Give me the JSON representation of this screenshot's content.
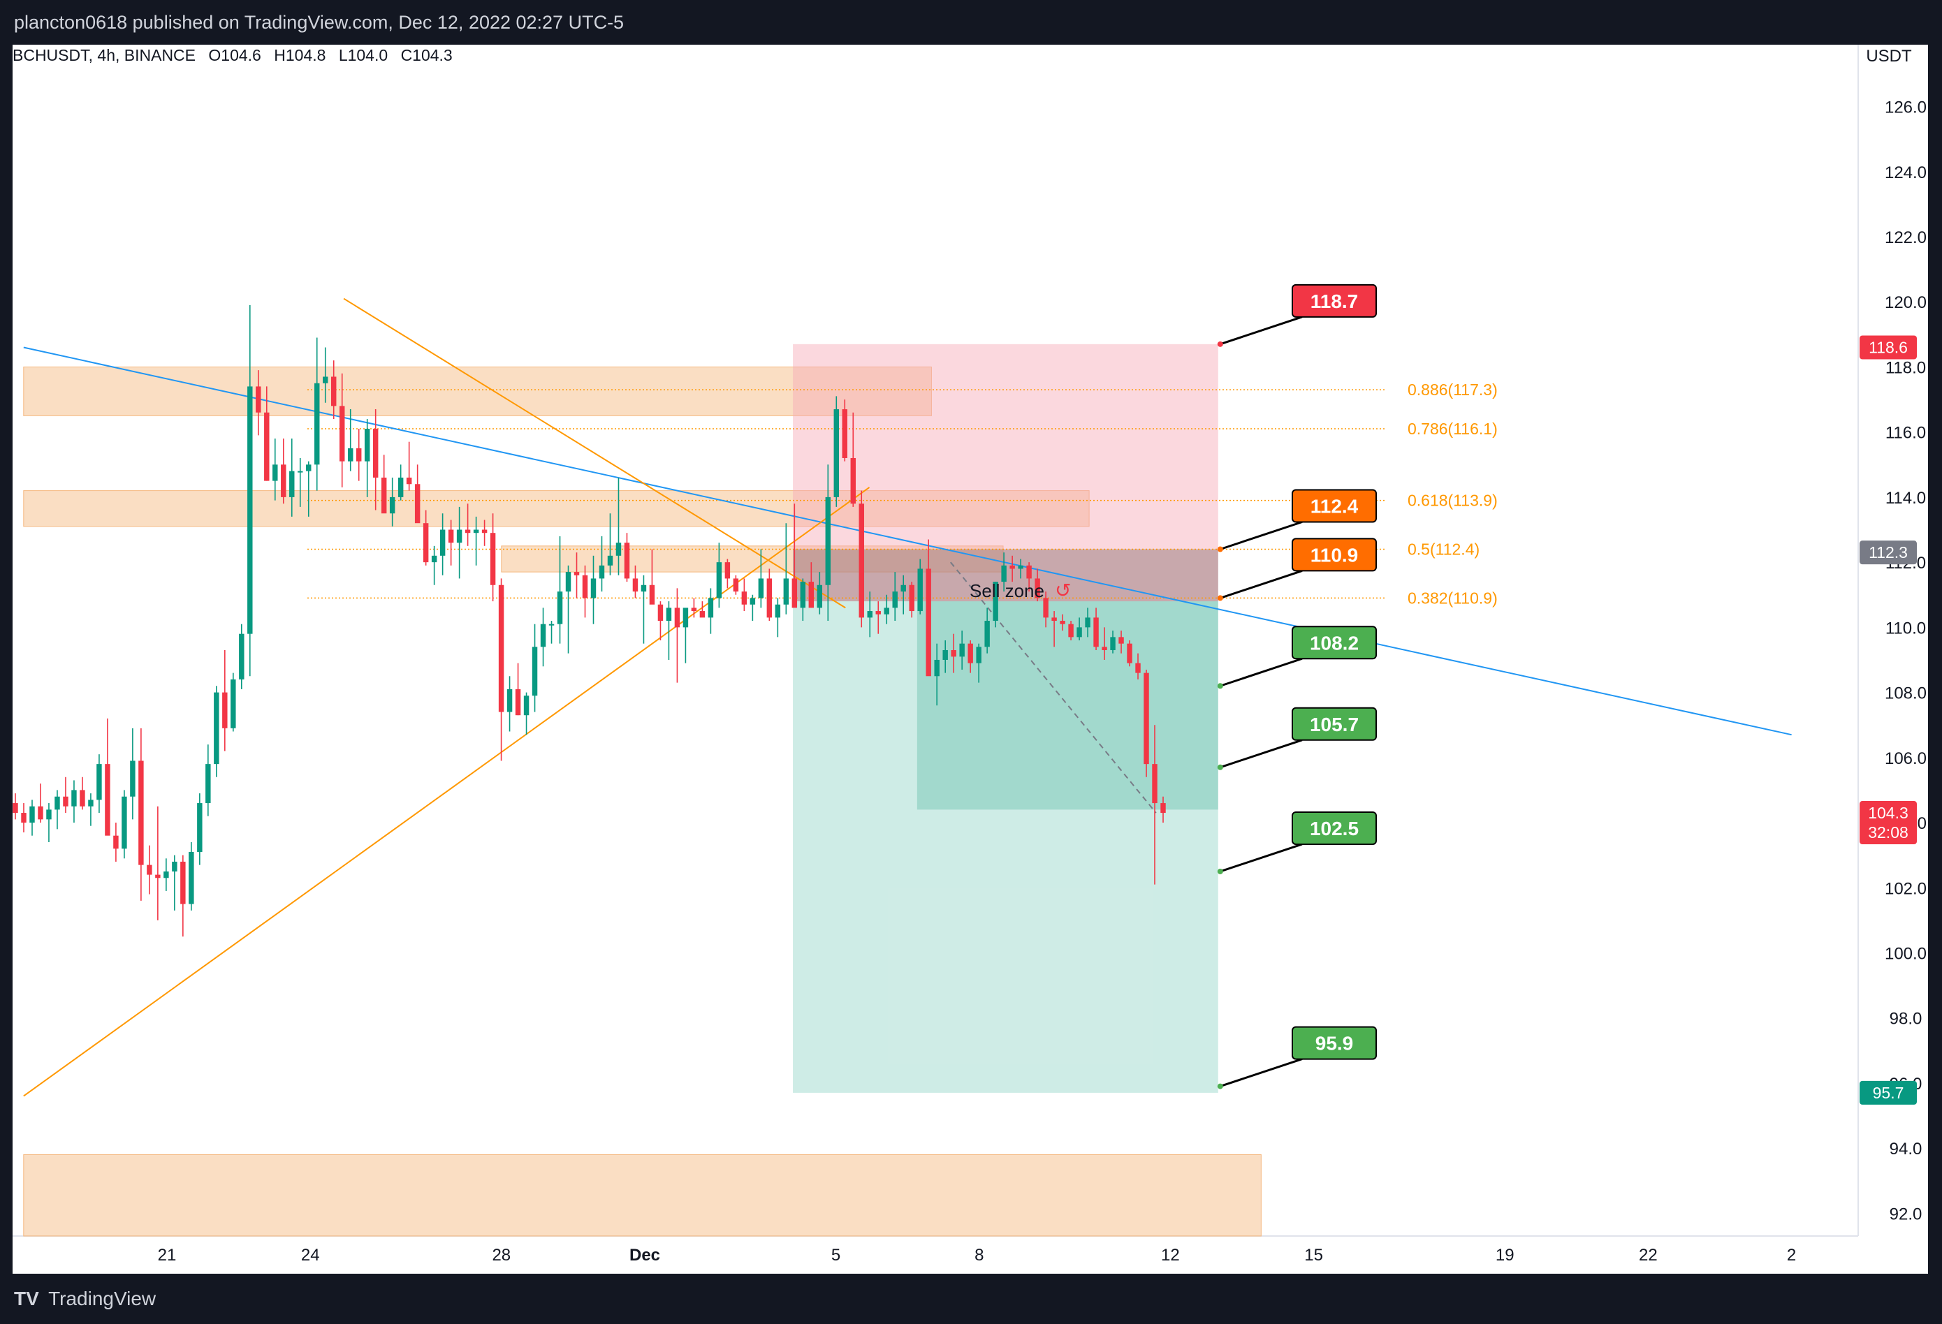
{
  "header": {
    "published_text": "plancton0618 published on TradingView.com, Dec 12, 2022 02:27 UTC-5"
  },
  "legend": {
    "symbol": "BCHUSDT, 4h, BINANCE",
    "open": "O104.6",
    "high": "H104.8",
    "low": "L104.0",
    "close": "C104.3"
  },
  "footer": {
    "brand": "TradingView"
  },
  "chart_data": {
    "type": "candlestick",
    "symbol": "BCHUSDT",
    "timeframe": "4h",
    "exchange": "BINANCE",
    "quote_currency": "USDT",
    "y_ticks": [
      "126.0",
      "124.0",
      "122.0",
      "120.0",
      "118.0",
      "116.0",
      "114.0",
      "112.0",
      "110.0",
      "108.0",
      "106.0",
      "104.0",
      "102.0",
      "100.0",
      "98.0",
      "96.0",
      "94.0",
      "92.0"
    ],
    "ylim": [
      91.3,
      127.9
    ],
    "x_ticks": [
      "21",
      "24",
      "28",
      "Dec",
      "5",
      "8",
      "12",
      "15",
      "19",
      "22",
      "2"
    ],
    "x_tick_days": [
      21,
      24,
      28,
      31,
      35,
      38,
      42,
      45,
      49,
      52,
      55
    ],
    "price_badges": [
      {
        "text": "118.6",
        "value": 118.6,
        "color": "#f23645"
      },
      {
        "text": "112.3",
        "value": 112.3,
        "color": "#787b86"
      },
      {
        "text": "104.3",
        "sub": "32:08",
        "value": 104.3,
        "color": "#f23645"
      },
      {
        "text": "95.7",
        "value": 95.7,
        "color": "#089981"
      }
    ],
    "fib_levels": [
      {
        "label": "0.886(117.3)",
        "value": 117.3
      },
      {
        "label": "0.786(116.1)",
        "value": 116.1
      },
      {
        "label": "0.618(113.9)",
        "value": 113.9
      },
      {
        "label": "0.5(112.4)",
        "value": 112.4
      },
      {
        "label": "0.382(110.9)",
        "value": 110.9
      }
    ],
    "callouts": [
      {
        "text": "118.7",
        "value": 118.7,
        "color": "#f23645"
      },
      {
        "text": "112.4",
        "value": 112.4,
        "color": "#ff6d00"
      },
      {
        "text": "110.9",
        "value": 110.9,
        "color": "#ff6d00"
      },
      {
        "text": "108.2",
        "value": 108.2,
        "color": "#4caf50"
      },
      {
        "text": "105.7",
        "value": 105.7,
        "color": "#4caf50"
      },
      {
        "text": "102.5",
        "value": 102.5,
        "color": "#4caf50"
      },
      {
        "text": "95.9",
        "value": 95.9,
        "color": "#4caf50"
      }
    ],
    "annotation": {
      "text": "Sell zone",
      "arrow": "curved-arrow-icon"
    },
    "zones": [
      {
        "kind": "supply",
        "t0": 18.0,
        "t1": 37.0,
        "y0": 116.5,
        "y1": 118.0
      },
      {
        "kind": "supply",
        "t0": 18.0,
        "t1": 40.3,
        "y0": 113.1,
        "y1": 114.2
      },
      {
        "kind": "supply",
        "t0": 28.0,
        "t1": 38.5,
        "y0": 111.7,
        "y1": 112.5
      },
      {
        "kind": "demand",
        "t0": 18.0,
        "t1": 43.9,
        "y0": 91.3,
        "y1": 93.8
      }
    ],
    "position": {
      "t0": 34.1,
      "t1": 43.0,
      "entry": 110.8,
      "stop": 118.7,
      "target": 95.7,
      "sell_zone_top": 112.4,
      "current": 104.4
    },
    "trendlines": [
      {
        "kind": "descending-blue",
        "t0": 18.0,
        "v0": 118.6,
        "t1": 55.0,
        "v1": 106.7
      },
      {
        "kind": "descending-orange",
        "t0": 24.7,
        "v0": 120.1,
        "t1": 35.2,
        "v1": 110.6
      },
      {
        "kind": "ascending-orange",
        "t0": 18.0,
        "v0": 95.6,
        "t1": 35.7,
        "v1": 114.3
      }
    ],
    "candles_ohlc": [
      [
        104.6,
        104.9,
        104.1,
        104.3
      ],
      [
        104.3,
        104.6,
        103.7,
        104.0
      ],
      [
        104.0,
        104.7,
        103.6,
        104.5
      ],
      [
        104.5,
        105.2,
        104.0,
        104.1
      ],
      [
        104.1,
        104.6,
        103.4,
        104.4
      ],
      [
        104.4,
        105.0,
        103.8,
        104.8
      ],
      [
        104.8,
        105.4,
        104.3,
        104.5
      ],
      [
        104.5,
        105.3,
        104.0,
        105.0
      ],
      [
        105.0,
        105.4,
        104.4,
        104.5
      ],
      [
        104.5,
        104.9,
        103.9,
        104.7
      ],
      [
        104.7,
        106.1,
        104.3,
        105.8
      ],
      [
        105.8,
        107.2,
        104.7,
        103.6
      ],
      [
        103.6,
        104.0,
        102.8,
        103.2
      ],
      [
        103.2,
        105.0,
        102.9,
        104.8
      ],
      [
        104.8,
        106.9,
        104.1,
        105.9
      ],
      [
        105.9,
        106.9,
        101.6,
        102.7
      ],
      [
        102.7,
        103.3,
        101.8,
        102.4
      ],
      [
        102.4,
        104.5,
        101.0,
        102.3
      ],
      [
        102.3,
        102.9,
        101.9,
        102.5
      ],
      [
        102.5,
        103.0,
        101.3,
        102.8
      ],
      [
        102.8,
        103.0,
        100.5,
        101.5
      ],
      [
        101.5,
        103.4,
        101.3,
        103.1
      ],
      [
        103.1,
        104.9,
        102.7,
        104.6
      ],
      [
        104.6,
        106.4,
        104.2,
        105.8
      ],
      [
        105.8,
        108.2,
        105.4,
        108.0
      ],
      [
        108.0,
        109.3,
        106.2,
        106.9
      ],
      [
        106.9,
        108.6,
        106.8,
        108.4
      ],
      [
        108.4,
        110.1,
        108.1,
        109.8
      ],
      [
        109.8,
        119.9,
        108.5,
        117.4
      ],
      [
        117.4,
        117.9,
        115.9,
        116.6
      ],
      [
        116.6,
        117.4,
        114.5,
        114.5
      ],
      [
        114.5,
        115.8,
        113.9,
        115.0
      ],
      [
        115.0,
        115.8,
        113.8,
        114.0
      ],
      [
        114.0,
        115.8,
        113.4,
        114.8
      ],
      [
        114.8,
        115.2,
        113.7,
        114.8
      ],
      [
        114.8,
        115.1,
        113.4,
        115.0
      ],
      [
        115.0,
        118.9,
        114.2,
        117.5
      ],
      [
        117.5,
        118.6,
        116.9,
        117.7
      ],
      [
        117.7,
        118.2,
        116.4,
        116.8
      ],
      [
        116.8,
        117.8,
        114.3,
        115.1
      ],
      [
        115.1,
        116.7,
        114.8,
        115.5
      ],
      [
        115.5,
        116.1,
        114.5,
        115.1
      ],
      [
        115.1,
        116.4,
        114.0,
        116.1
      ],
      [
        116.1,
        116.7,
        113.6,
        114.6
      ],
      [
        114.6,
        115.3,
        113.8,
        113.5
      ],
      [
        113.5,
        114.6,
        113.1,
        114.0
      ],
      [
        114.0,
        115.0,
        113.9,
        114.6
      ],
      [
        114.6,
        115.7,
        114.2,
        114.4
      ],
      [
        114.4,
        115.0,
        113.7,
        113.2
      ],
      [
        113.2,
        113.6,
        111.9,
        112.0
      ],
      [
        112.0,
        112.5,
        111.3,
        112.2
      ],
      [
        112.2,
        113.5,
        111.6,
        113.0
      ],
      [
        113.0,
        113.3,
        111.9,
        112.6
      ],
      [
        112.6,
        113.7,
        111.5,
        113.0
      ],
      [
        113.0,
        113.8,
        112.5,
        112.9
      ],
      [
        112.9,
        113.4,
        111.9,
        113.0
      ],
      [
        113.0,
        113.3,
        112.5,
        112.9
      ],
      [
        112.9,
        113.5,
        110.8,
        111.3
      ],
      [
        111.3,
        111.5,
        105.9,
        107.4
      ],
      [
        107.4,
        108.5,
        106.8,
        108.1
      ],
      [
        108.1,
        108.9,
        107.3,
        107.3
      ],
      [
        107.3,
        108.0,
        106.7,
        107.9
      ],
      [
        107.9,
        110.1,
        107.4,
        109.4
      ],
      [
        109.4,
        110.6,
        108.8,
        110.1
      ],
      [
        110.1,
        110.2,
        109.5,
        110.1
      ],
      [
        110.1,
        112.8,
        109.5,
        111.1
      ],
      [
        111.1,
        111.9,
        109.2,
        111.7
      ],
      [
        111.7,
        112.3,
        110.9,
        111.6
      ],
      [
        111.6,
        111.9,
        110.3,
        110.9
      ],
      [
        110.9,
        112.2,
        110.1,
        111.5
      ],
      [
        111.5,
        112.8,
        111.1,
        111.9
      ],
      [
        111.9,
        113.5,
        111.6,
        112.2
      ],
      [
        112.2,
        114.6,
        111.6,
        112.6
      ],
      [
        112.6,
        112.9,
        111.4,
        111.5
      ],
      [
        111.5,
        111.9,
        110.9,
        111.1
      ],
      [
        111.1,
        111.6,
        109.5,
        111.3
      ],
      [
        111.3,
        112.4,
        110.8,
        110.7
      ],
      [
        110.7,
        110.8,
        109.6,
        110.2
      ],
      [
        110.2,
        110.8,
        109.0,
        110.6
      ],
      [
        110.6,
        111.2,
        108.3,
        110.0
      ],
      [
        110.0,
        110.5,
        108.9,
        110.6
      ],
      [
        110.6,
        110.9,
        110.3,
        110.5
      ],
      [
        110.5,
        110.8,
        110.4,
        110.3
      ],
      [
        110.3,
        111.2,
        109.8,
        110.9
      ],
      [
        110.9,
        112.6,
        110.6,
        112.0
      ],
      [
        112.0,
        112.1,
        111.2,
        111.5
      ],
      [
        111.5,
        111.6,
        111.0,
        111.1
      ],
      [
        111.1,
        111.5,
        110.5,
        110.7
      ],
      [
        110.7,
        111.0,
        110.2,
        110.9
      ],
      [
        110.9,
        112.4,
        110.6,
        111.5
      ],
      [
        111.5,
        111.8,
        110.2,
        110.3
      ],
      [
        110.3,
        110.9,
        109.7,
        110.7
      ],
      [
        110.7,
        113.2,
        110.4,
        111.5
      ],
      [
        111.5,
        113.8,
        110.9,
        110.6
      ],
      [
        110.6,
        111.5,
        110.2,
        111.4
      ],
      [
        111.4,
        112.0,
        110.6,
        110.6
      ],
      [
        110.6,
        111.7,
        110.4,
        111.3
      ],
      [
        111.3,
        115.0,
        110.2,
        114.0
      ],
      [
        114.0,
        117.1,
        113.7,
        116.7
      ],
      [
        116.7,
        117.0,
        115.1,
        115.2
      ],
      [
        115.2,
        116.6,
        113.7,
        113.8
      ],
      [
        113.8,
        114.2,
        110.0,
        110.3
      ],
      [
        110.3,
        111.1,
        109.7,
        110.5
      ],
      [
        110.5,
        110.8,
        109.8,
        110.4
      ],
      [
        110.4,
        111.0,
        110.1,
        110.6
      ],
      [
        110.6,
        111.7,
        110.2,
        111.1
      ],
      [
        111.1,
        111.6,
        110.4,
        111.3
      ],
      [
        111.3,
        111.4,
        110.3,
        110.5
      ],
      [
        110.5,
        112.1,
        110.4,
        111.8
      ],
      [
        111.8,
        112.7,
        110.4,
        108.5
      ],
      [
        108.5,
        109.5,
        107.6,
        109.0
      ],
      [
        109.0,
        109.6,
        108.6,
        109.3
      ],
      [
        109.3,
        109.8,
        108.6,
        109.1
      ],
      [
        109.1,
        109.9,
        108.7,
        109.5
      ],
      [
        109.5,
        109.6,
        108.6,
        108.9
      ],
      [
        108.9,
        109.5,
        108.3,
        109.4
      ],
      [
        109.4,
        110.6,
        109.2,
        110.2
      ],
      [
        110.2,
        111.4,
        110.0,
        111.4
      ],
      [
        111.4,
        112.3,
        111.1,
        111.9
      ],
      [
        111.9,
        112.2,
        111.4,
        111.8
      ],
      [
        111.8,
        112.1,
        111.5,
        111.9
      ],
      [
        111.9,
        112.0,
        111.1,
        111.5
      ],
      [
        111.5,
        111.8,
        110.8,
        110.9
      ],
      [
        110.9,
        111.1,
        110.0,
        110.3
      ],
      [
        110.3,
        110.5,
        109.4,
        110.2
      ],
      [
        110.2,
        110.4,
        109.9,
        110.1
      ],
      [
        110.1,
        110.2,
        109.6,
        109.7
      ],
      [
        109.7,
        110.3,
        109.6,
        110.0
      ],
      [
        110.0,
        110.6,
        109.7,
        110.3
      ],
      [
        110.3,
        110.6,
        109.3,
        109.4
      ],
      [
        109.4,
        110.0,
        109.0,
        109.3
      ],
      [
        109.3,
        109.9,
        109.2,
        109.7
      ],
      [
        109.7,
        109.9,
        109.2,
        109.5
      ],
      [
        109.5,
        109.6,
        108.8,
        108.9
      ],
      [
        108.9,
        109.2,
        108.4,
        108.6
      ],
      [
        108.6,
        108.7,
        105.4,
        105.8
      ],
      [
        105.8,
        107.0,
        102.1,
        104.6
      ],
      [
        104.6,
        104.8,
        104.0,
        104.3
      ]
    ]
  }
}
